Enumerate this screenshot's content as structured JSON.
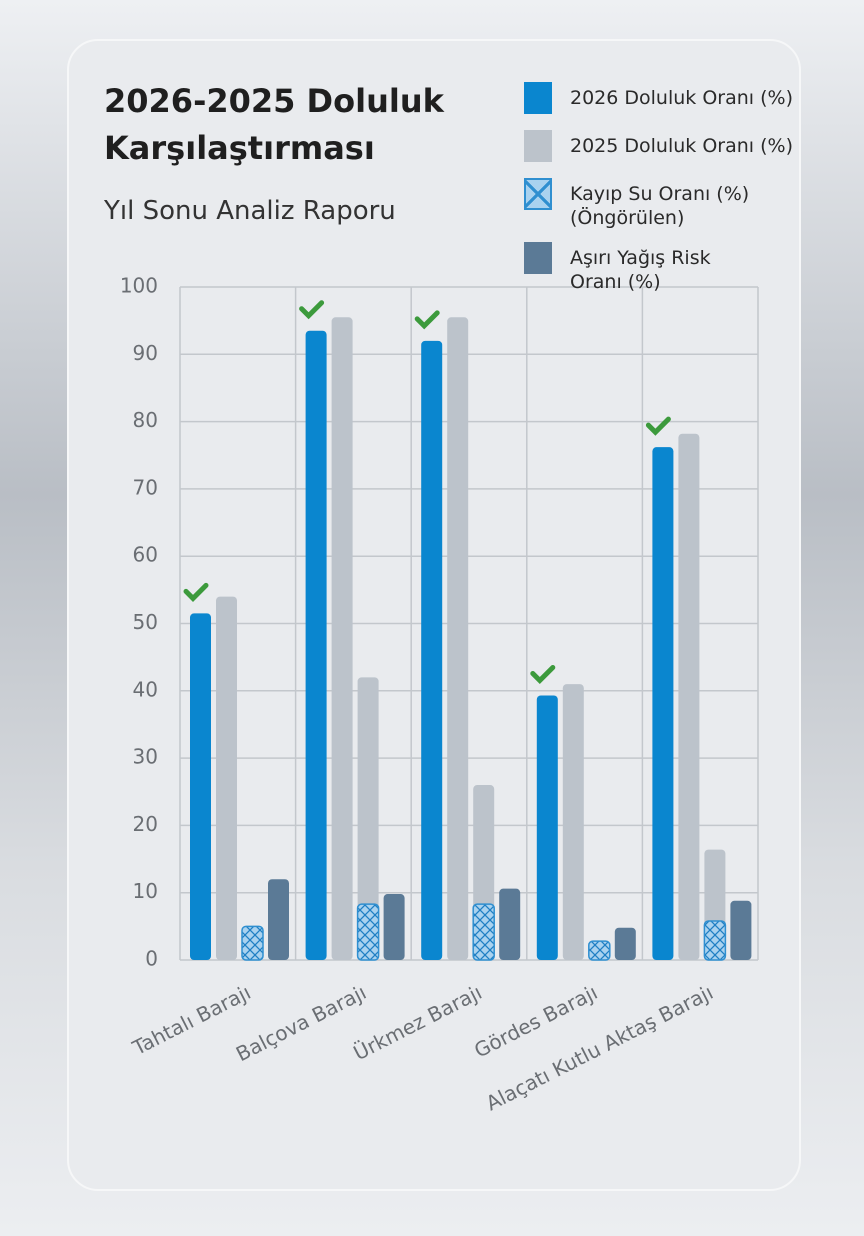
{
  "chart_data": {
    "type": "bar",
    "title": "2026-2025 Doluluk\nKarşılaştırması",
    "subtitle": "Yıl Sonu Analiz Raporu",
    "categories": [
      "Tahtalı Barajı",
      "Balçova Barajı",
      "Ürkmez Barajı",
      "Gördes Barajı",
      "Alaçatı Kutlu Aktaş Barajı"
    ],
    "series": [
      {
        "name": "2026 Doluluk Oranı (%)",
        "color": "#0a86cf",
        "values": [
          51.5,
          93.5,
          92,
          39.3,
          76.2
        ]
      },
      {
        "name": "2025 Doluluk Oranı (%)",
        "color": "#bcc3cb",
        "values": [
          54,
          95.5,
          95.5,
          41,
          78.2
        ]
      },
      {
        "color": "#bcc3cb",
        "values": [
          null,
          42,
          26,
          null,
          16.4
        ]
      },
      {
        "name": "Kayıp Su Oranı (%)\n(Öngörülen)",
        "color": "#2f8fd0",
        "hatch": true,
        "values": [
          5,
          8.3,
          8.3,
          2.8,
          5.8
        ]
      },
      {
        "name": "Aşırı Yağış Risk\nOranı (%)",
        "color": "#5b7a96",
        "values": [
          12,
          9.8,
          10.6,
          4.8,
          8.8
        ]
      }
    ],
    "ylim": [
      0,
      100
    ],
    "yticks": [
      0,
      10,
      20,
      30,
      40,
      50,
      60,
      70,
      80,
      90,
      100
    ],
    "grid": true
  }
}
